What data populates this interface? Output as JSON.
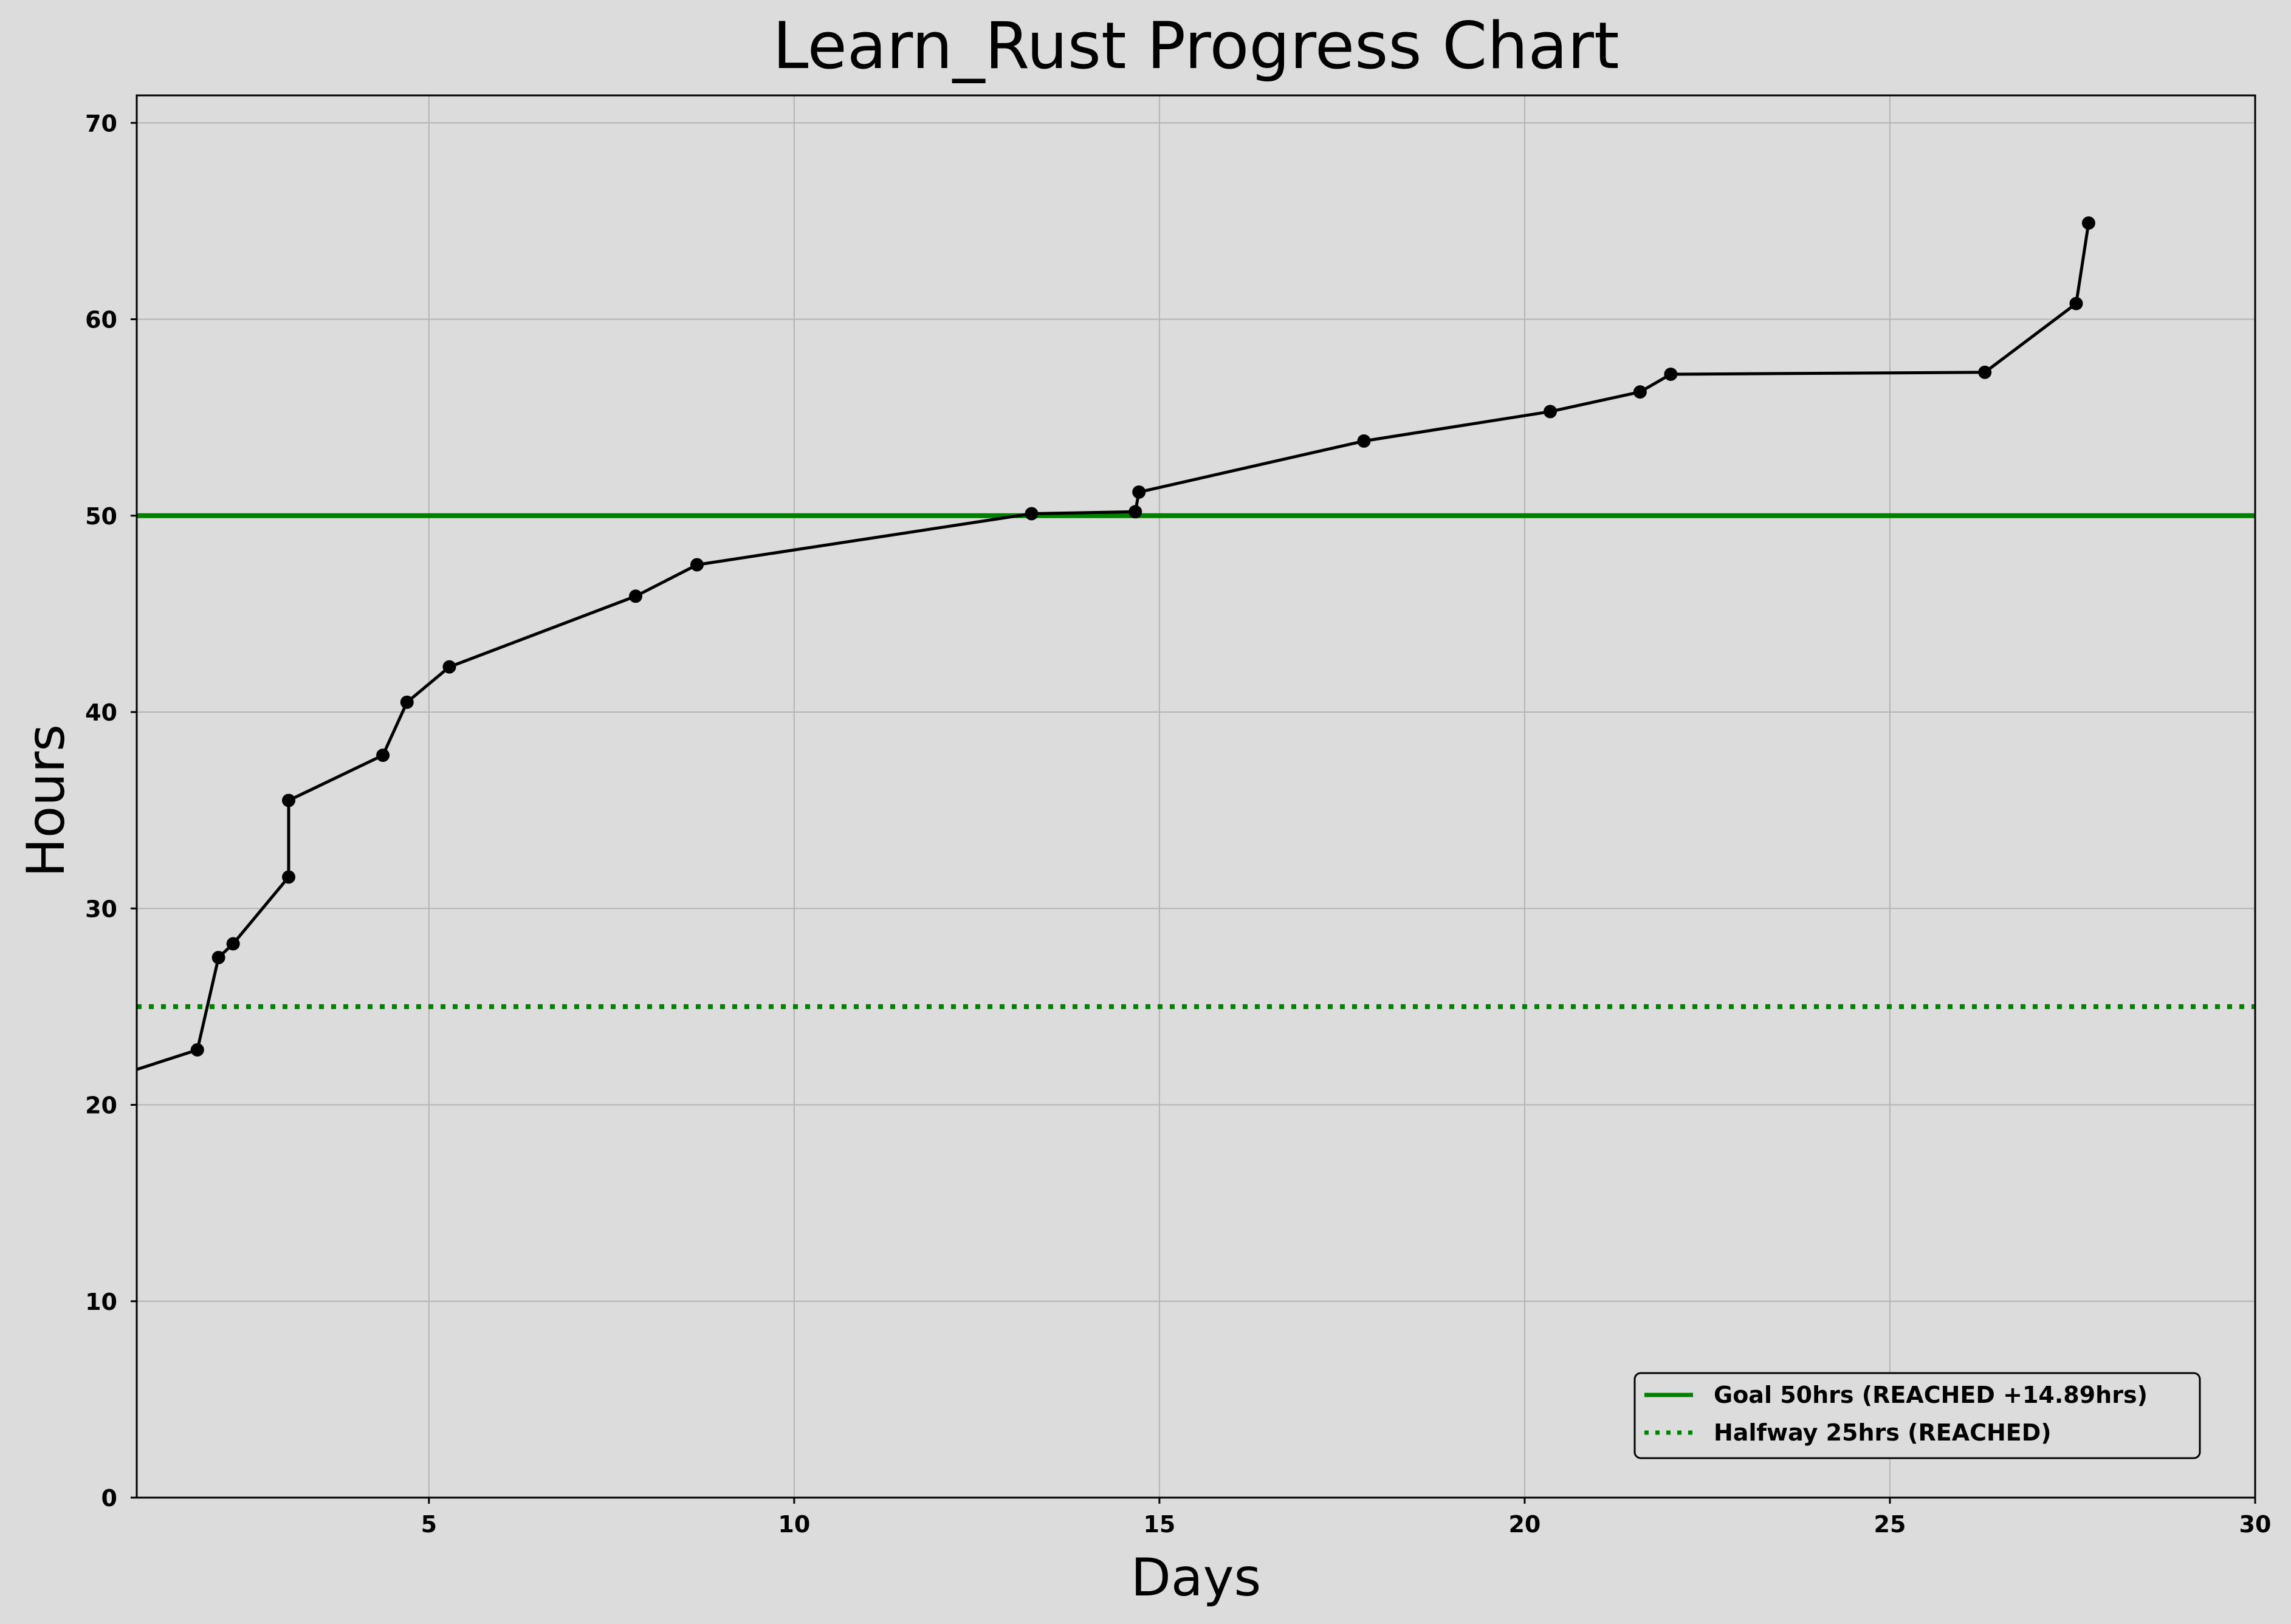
{
  "chart_data": {
    "type": "line",
    "title": "Learn_Rust Progress Chart",
    "xlabel": "Days",
    "ylabel": "Hours",
    "xlim": [
      1,
      30
    ],
    "ylim": [
      0,
      71.4
    ],
    "xticks": [
      5,
      10,
      15,
      20,
      25,
      30
    ],
    "yticks": [
      0,
      10,
      20,
      30,
      40,
      50,
      60,
      70
    ],
    "grid": true,
    "legend_position": "bottom-right",
    "colors": {
      "background": "#dcdcdc",
      "progress_line": "#000000",
      "goal_line": "#008000",
      "grid": "#b4b4b4"
    },
    "series": [
      {
        "x": [
          0.5,
          1.83,
          2.12,
          2.32,
          3.08,
          3.08,
          4.37,
          4.7,
          5.28,
          7.83,
          8.67,
          13.25,
          14.67,
          14.72,
          17.8,
          20.35,
          21.58,
          22.0,
          26.3,
          27.55,
          27.72
        ],
        "y": [
          21.2,
          22.8,
          27.5,
          28.2,
          31.6,
          35.5,
          37.8,
          40.5,
          42.3,
          45.9,
          47.5,
          50.1,
          50.2,
          51.2,
          53.8,
          55.3,
          56.3,
          57.2,
          57.3,
          60.8,
          64.9
        ],
        "markers": [
          false,
          true,
          true,
          true,
          true,
          true,
          true,
          true,
          true,
          true,
          true,
          true,
          true,
          true,
          true,
          true,
          true,
          true,
          true,
          true,
          true
        ]
      }
    ],
    "reference_lines": [
      {
        "name": "Goal 50hrs (REACHED +14.89hrs)",
        "y": 50,
        "style": "solid",
        "color": "#008000"
      },
      {
        "name": "Halfway 25hrs (REACHED)",
        "y": 25,
        "style": "dotted",
        "color": "#008000"
      }
    ]
  }
}
